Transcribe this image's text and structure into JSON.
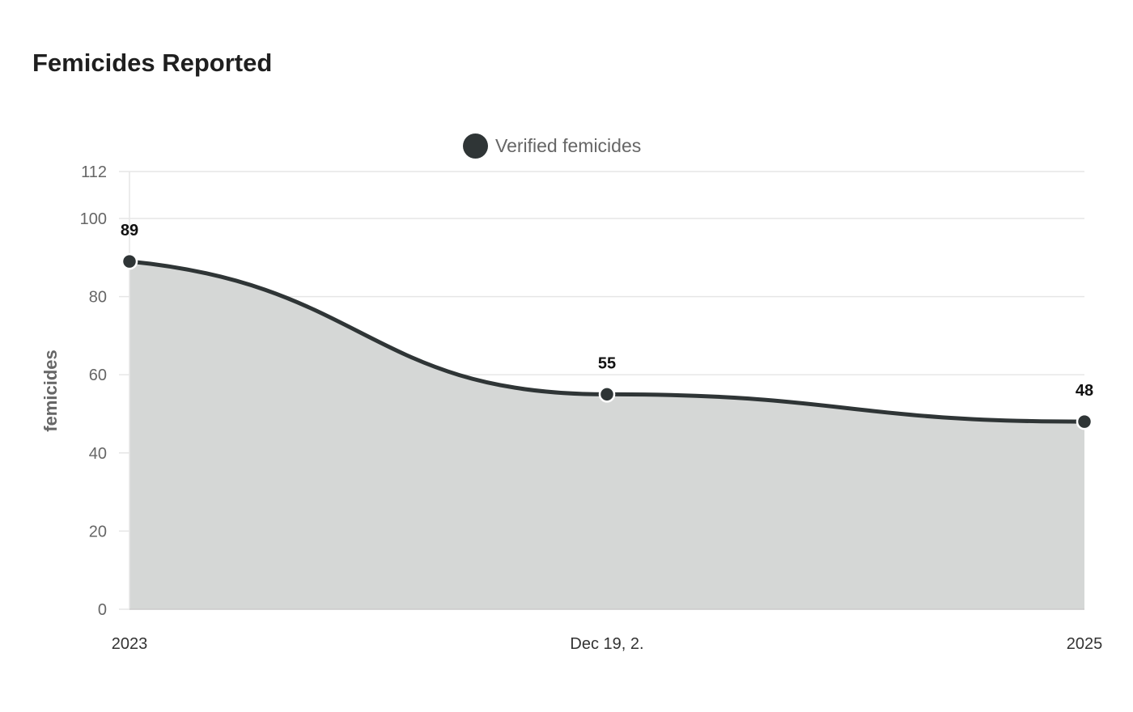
{
  "title": "Femicides Reported",
  "legend": {
    "label": "Verified femicides",
    "color": "#2f3536"
  },
  "colors": {
    "line": "#2f3536",
    "area": "#d5d7d6",
    "grid": "#e6e6e6"
  },
  "chart_data": {
    "type": "area",
    "title": "Femicides Reported",
    "xlabel": "",
    "ylabel": "femicides",
    "x_tick_labels": [
      "2023",
      "Dec 19, 2.",
      "2025"
    ],
    "y_ticks": [
      0,
      20,
      40,
      60,
      80,
      100,
      112
    ],
    "ylim": [
      0,
      112
    ],
    "grid": true,
    "legend_position": "top-center",
    "series": [
      {
        "name": "Verified femicides",
        "x": [
          "2023",
          "Dec 19, 2.",
          "2025"
        ],
        "values": [
          89,
          55,
          48
        ]
      }
    ]
  }
}
